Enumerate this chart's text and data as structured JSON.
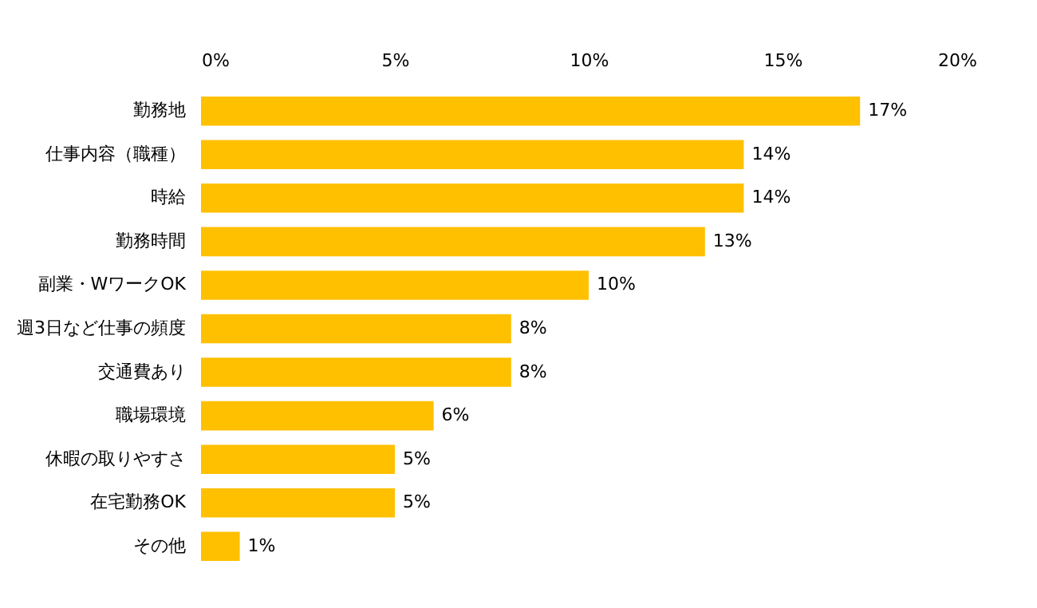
{
  "chart_data": {
    "type": "bar",
    "orientation": "horizontal",
    "categories": [
      "勤務地",
      "仕事内容（職種）",
      "時給",
      "勤務時間",
      "副業・WワークOK",
      "週3日など仕事の頻度",
      "交通費あり",
      "職場環境",
      "休暇の取りやすさ",
      "在宅勤務OK",
      "その他"
    ],
    "values": [
      17,
      14,
      14,
      13,
      10,
      8,
      8,
      6,
      5,
      5,
      1
    ],
    "value_labels": [
      "17%",
      "14%",
      "14%",
      "13%",
      "10%",
      "8%",
      "8%",
      "6%",
      "5%",
      "5%",
      "1%"
    ],
    "color": "#ffc000",
    "xlim": [
      0,
      20
    ],
    "xticks": [
      {
        "value": 0,
        "label": "0%"
      },
      {
        "value": 5,
        "label": "5%"
      },
      {
        "value": 10,
        "label": "10%"
      },
      {
        "value": 15,
        "label": "15%"
      },
      {
        "value": 20,
        "label": "20%"
      }
    ],
    "grid": false
  }
}
